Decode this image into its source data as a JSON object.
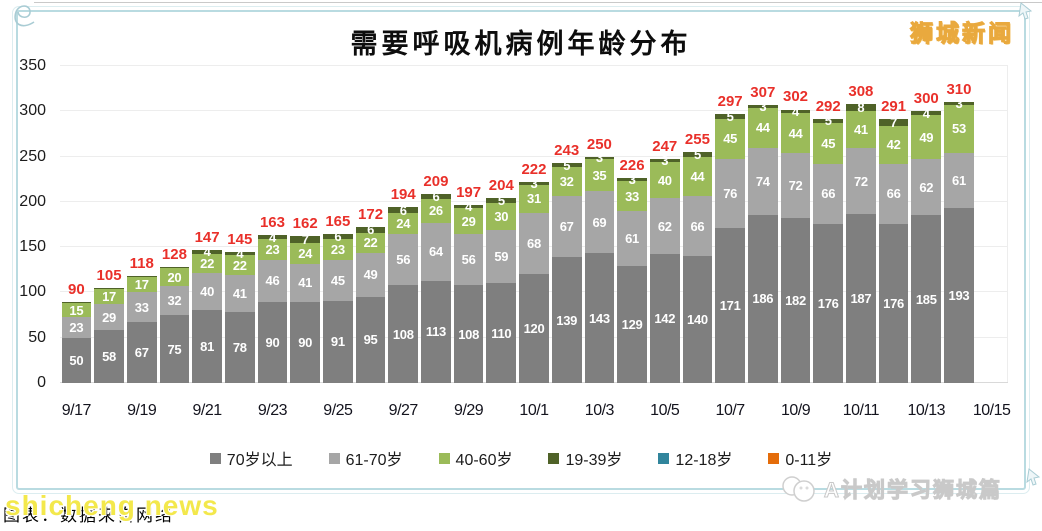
{
  "frame": {
    "brand_topright": "狮城新闻",
    "watermark_en": "shicheng news",
    "watermark_cn": "图表：数据来自网络",
    "credit_bottomright": "A计划学习狮城篇"
  },
  "chart_data": {
    "type": "bar",
    "stacked": true,
    "title": "需要呼吸机病例年龄分布",
    "categories": [
      "9/17",
      "9/18",
      "9/19",
      "9/20",
      "9/21",
      "9/22",
      "9/23",
      "9/24",
      "9/25",
      "9/26",
      "9/27",
      "9/28",
      "9/29",
      "9/30",
      "10/1",
      "10/2",
      "10/3",
      "10/4",
      "10/5",
      "10/6",
      "10/7",
      "10/8",
      "10/9",
      "10/10",
      "10/11",
      "10/12",
      "10/13",
      "10/14"
    ],
    "x_tick_labels": [
      "9/17",
      "9/19",
      "9/21",
      "9/23",
      "9/25",
      "9/27",
      "9/29",
      "10/1",
      "10/3",
      "10/5",
      "10/7",
      "10/9",
      "10/11",
      "10/13",
      "10/15"
    ],
    "y_ticks": [
      0,
      50,
      100,
      150,
      200,
      250,
      300,
      350
    ],
    "ylim": [
      0,
      350
    ],
    "grid": true,
    "legend_position": "bottom",
    "series": [
      {
        "name": "70岁以上",
        "color": "#7f7f7f",
        "values": [
          50,
          58,
          67,
          75,
          81,
          78,
          90,
          90,
          91,
          95,
          108,
          113,
          108,
          110,
          120,
          139,
          143,
          129,
          142,
          140,
          171,
          186,
          182,
          176,
          187,
          176,
          185,
          193
        ]
      },
      {
        "name": "61-70岁",
        "color": "#a6a6a6",
        "values": [
          23,
          29,
          33,
          32,
          40,
          41,
          46,
          41,
          45,
          49,
          56,
          64,
          56,
          59,
          68,
          67,
          69,
          61,
          62,
          66,
          76,
          74,
          72,
          66,
          72,
          66,
          62,
          61
        ]
      },
      {
        "name": "40-60岁",
        "color": "#9bbb59",
        "values": [
          15,
          17,
          17,
          20,
          22,
          22,
          23,
          24,
          23,
          22,
          24,
          26,
          29,
          30,
          31,
          32,
          35,
          33,
          40,
          44,
          45,
          44,
          44,
          45,
          41,
          42,
          49,
          53
        ]
      },
      {
        "name": "19-39岁",
        "color": "#4f6228",
        "values": [
          2,
          1,
          1,
          1,
          4,
          4,
          4,
          7,
          6,
          6,
          6,
          6,
          4,
          5,
          3,
          5,
          3,
          3,
          3,
          5,
          5,
          3,
          4,
          5,
          8,
          7,
          4,
          3
        ]
      },
      {
        "name": "12-18岁",
        "color": "#31859c",
        "values": [
          0,
          0,
          0,
          0,
          0,
          0,
          0,
          0,
          0,
          0,
          0,
          0,
          0,
          0,
          0,
          0,
          0,
          0,
          0,
          0,
          0,
          0,
          0,
          0,
          0,
          0,
          0,
          0
        ]
      },
      {
        "name": "0-11岁",
        "color": "#e46c0a",
        "values": [
          0,
          0,
          0,
          0,
          0,
          0,
          0,
          0,
          0,
          0,
          0,
          0,
          0,
          0,
          0,
          0,
          0,
          0,
          0,
          0,
          0,
          0,
          0,
          0,
          0,
          0,
          0,
          0
        ]
      }
    ],
    "totals": [
      90,
      105,
      118,
      128,
      147,
      145,
      163,
      162,
      165,
      172,
      194,
      209,
      197,
      204,
      222,
      243,
      250,
      226,
      247,
      255,
      297,
      307,
      302,
      292,
      308,
      291,
      300,
      310
    ],
    "totals_color": "#e9302a",
    "value_label_color": "#ffffff",
    "min_label_value": 3
  }
}
